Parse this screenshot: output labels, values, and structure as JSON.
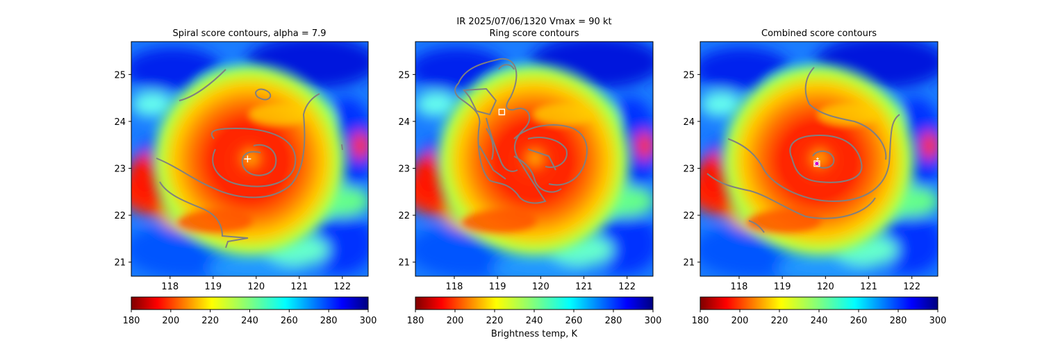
{
  "figure": {
    "suptitle_line1": "IR  2025/07/06/1320    Vmax = 90 kt",
    "colorbar_label": "Brightness temp, K",
    "colormap": "jet_r"
  },
  "chart_data": [
    {
      "type": "heatmap",
      "title": "Spiral score contours, alpha =  7.9",
      "xlim": [
        117.1,
        122.6
      ],
      "ylim": [
        20.7,
        25.7
      ],
      "xticks": [
        "118",
        "119",
        "120",
        "121",
        "122"
      ],
      "yticks": [
        "21",
        "22",
        "23",
        "24",
        "25"
      ],
      "grid": false,
      "center_marker": {
        "symbol": "plus",
        "lon": 119.8,
        "lat": 23.2
      },
      "colorbar": {
        "range": [
          180,
          300
        ],
        "ticks": [
          "180",
          "200",
          "220",
          "240",
          "260",
          "280",
          "300"
        ]
      }
    },
    {
      "type": "heatmap",
      "title": "Ring score contours",
      "xlim": [
        117.1,
        122.6
      ],
      "ylim": [
        20.7,
        25.7
      ],
      "xticks": [
        "118",
        "119",
        "120",
        "121",
        "122"
      ],
      "yticks": [
        "21",
        "22",
        "23",
        "24",
        "25"
      ],
      "grid": false,
      "center_marker": {
        "symbol": "square",
        "lon": 119.1,
        "lat": 24.2
      },
      "colorbar": {
        "range": [
          180,
          300
        ],
        "ticks": [
          "180",
          "200",
          "220",
          "240",
          "260",
          "280",
          "300"
        ]
      }
    },
    {
      "type": "heatmap",
      "title": "Combined score contours",
      "xlim": [
        117.1,
        122.6
      ],
      "ylim": [
        20.7,
        25.7
      ],
      "xticks": [
        "118",
        "119",
        "120",
        "121",
        "122"
      ],
      "yticks": [
        "21",
        "22",
        "23",
        "24",
        "25"
      ],
      "grid": false,
      "center_marker": {
        "symbol": "circle",
        "lon": 119.8,
        "lat": 23.1
      },
      "colorbar": {
        "range": [
          180,
          300
        ],
        "ticks": [
          "180",
          "200",
          "220",
          "240",
          "260",
          "280",
          "300"
        ]
      }
    }
  ]
}
